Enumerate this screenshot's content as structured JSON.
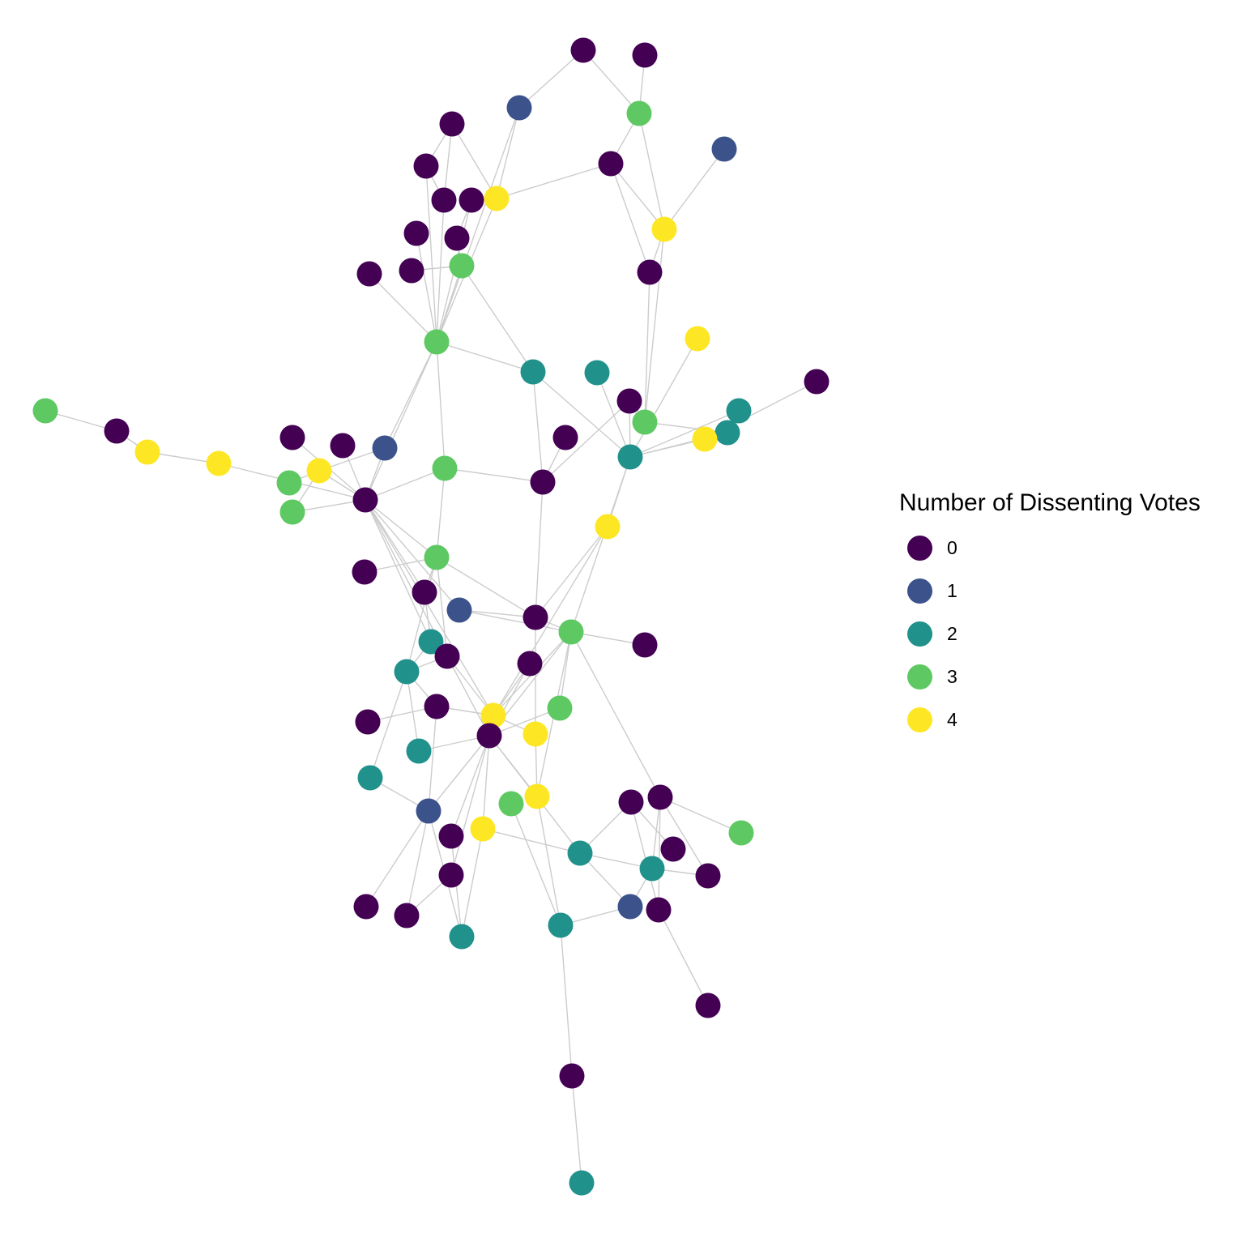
{
  "legend": {
    "title": "Number of Dissenting Votes",
    "items": [
      {
        "label": "0",
        "color": "#440154"
      },
      {
        "label": "1",
        "color": "#3b528b"
      },
      {
        "label": "2",
        "color": "#21918c"
      },
      {
        "label": "3",
        "color": "#5ec962"
      },
      {
        "label": "4",
        "color": "#fde725"
      }
    ]
  },
  "network": {
    "node_count": 92,
    "edge_color": "#cccccc",
    "nodes": [
      {
        "id": 0,
        "votes": 0
      },
      {
        "id": 1,
        "votes": 0
      },
      {
        "id": 2,
        "votes": 1
      },
      {
        "id": 3,
        "votes": 3
      },
      {
        "id": 4,
        "votes": 0
      },
      {
        "id": 5,
        "votes": 1
      },
      {
        "id": 6,
        "votes": 0
      },
      {
        "id": 7,
        "votes": 0
      },
      {
        "id": 8,
        "votes": 0
      },
      {
        "id": 9,
        "votes": 0
      },
      {
        "id": 10,
        "votes": 4
      },
      {
        "id": 11,
        "votes": 4
      },
      {
        "id": 12,
        "votes": 0
      },
      {
        "id": 13,
        "votes": 0
      },
      {
        "id": 14,
        "votes": 0
      },
      {
        "id": 15,
        "votes": 0
      },
      {
        "id": 16,
        "votes": 3
      },
      {
        "id": 17,
        "votes": 0
      },
      {
        "id": 18,
        "votes": 4
      },
      {
        "id": 19,
        "votes": 3
      },
      {
        "id": 20,
        "votes": 2
      },
      {
        "id": 21,
        "votes": 2
      },
      {
        "id": 22,
        "votes": 0
      },
      {
        "id": 23,
        "votes": 0
      },
      {
        "id": 24,
        "votes": 2
      },
      {
        "id": 25,
        "votes": 3
      },
      {
        "id": 26,
        "votes": 2
      },
      {
        "id": 27,
        "votes": 4
      },
      {
        "id": 28,
        "votes": 3
      },
      {
        "id": 29,
        "votes": 0
      },
      {
        "id": 30,
        "votes": 4
      },
      {
        "id": 31,
        "votes": 4
      },
      {
        "id": 32,
        "votes": 0
      },
      {
        "id": 33,
        "votes": 0
      },
      {
        "id": 34,
        "votes": 1
      },
      {
        "id": 35,
        "votes": 3
      },
      {
        "id": 36,
        "votes": 0
      },
      {
        "id": 37,
        "votes": 2
      },
      {
        "id": 38,
        "votes": 3
      },
      {
        "id": 39,
        "votes": 3
      },
      {
        "id": 40,
        "votes": 0
      },
      {
        "id": 41,
        "votes": 4
      },
      {
        "id": 42,
        "votes": 3
      },
      {
        "id": 43,
        "votes": 0
      },
      {
        "id": 44,
        "votes": 0
      },
      {
        "id": 45,
        "votes": 1
      },
      {
        "id": 46,
        "votes": 0
      },
      {
        "id": 47,
        "votes": 3
      },
      {
        "id": 48,
        "votes": 0
      },
      {
        "id": 49,
        "votes": 2
      },
      {
        "id": 50,
        "votes": 0
      },
      {
        "id": 51,
        "votes": 2
      },
      {
        "id": 52,
        "votes": 0
      },
      {
        "id": 53,
        "votes": 0
      },
      {
        "id": 54,
        "votes": 3
      },
      {
        "id": 55,
        "votes": 4
      },
      {
        "id": 56,
        "votes": 0
      },
      {
        "id": 57,
        "votes": 4
      },
      {
        "id": 58,
        "votes": 2
      },
      {
        "id": 59,
        "votes": 2
      },
      {
        "id": 60,
        "votes": 4
      },
      {
        "id": 61,
        "votes": 3
      },
      {
        "id": 62,
        "votes": 1
      },
      {
        "id": 63,
        "votes": 4
      },
      {
        "id": 64,
        "votes": 0
      },
      {
        "id": 65,
        "votes": 2
      },
      {
        "id": 66,
        "votes": 0
      },
      {
        "id": 67,
        "votes": 0
      },
      {
        "id": 68,
        "votes": 3
      },
      {
        "id": 69,
        "votes": 0
      },
      {
        "id": 70,
        "votes": 2
      },
      {
        "id": 71,
        "votes": 0
      },
      {
        "id": 72,
        "votes": 0
      },
      {
        "id": 73,
        "votes": 0
      },
      {
        "id": 74,
        "votes": 1
      },
      {
        "id": 75,
        "votes": 0
      },
      {
        "id": 76,
        "votes": 0
      },
      {
        "id": 77,
        "votes": 2
      },
      {
        "id": 78,
        "votes": 2
      },
      {
        "id": 79,
        "votes": 0
      },
      {
        "id": 80,
        "votes": 0
      },
      {
        "id": 81,
        "votes": 2
      },
      {
        "id": 82,
        "votes": 0
      },
      {
        "id": 83,
        "votes": 0
      },
      {
        "id": 84,
        "votes": 2
      },
      {
        "id": 85,
        "votes": 0
      },
      {
        "id": 86,
        "votes": 0
      },
      {
        "id": 87,
        "votes": 0
      },
      {
        "id": 88,
        "votes": 3
      },
      {
        "id": 89,
        "votes": 0
      },
      {
        "id": 90,
        "votes": 0
      },
      {
        "id": 91,
        "votes": 0
      }
    ],
    "edges": [
      [
        0,
        2
      ],
      [
        2,
        10
      ],
      [
        0,
        3
      ],
      [
        1,
        3
      ],
      [
        3,
        11
      ],
      [
        4,
        11
      ],
      [
        5,
        11
      ],
      [
        4,
        10
      ],
      [
        6,
        10
      ],
      [
        7,
        10
      ],
      [
        8,
        10
      ],
      [
        9,
        10
      ],
      [
        6,
        16
      ],
      [
        7,
        16
      ],
      [
        8,
        16
      ],
      [
        9,
        16
      ],
      [
        12,
        16
      ],
      [
        13,
        16
      ],
      [
        14,
        16
      ],
      [
        15,
        16
      ],
      [
        10,
        16
      ],
      [
        2,
        16
      ],
      [
        3,
        11
      ],
      [
        12,
        16
      ],
      [
        13,
        19
      ],
      [
        14,
        19
      ],
      [
        6,
        19
      ],
      [
        19,
        16
      ],
      [
        16,
        20
      ],
      [
        20,
        22
      ],
      [
        20,
        24
      ],
      [
        22,
        17
      ],
      [
        17,
        24
      ],
      [
        22,
        25
      ],
      [
        24,
        25
      ],
      [
        24,
        18
      ],
      [
        24,
        21
      ],
      [
        24,
        26
      ],
      [
        23,
        26
      ],
      [
        24,
        27
      ],
      [
        16,
        34
      ],
      [
        16,
        28
      ],
      [
        28,
        29
      ],
      [
        29,
        22
      ],
      [
        29,
        30
      ],
      [
        34,
        33
      ],
      [
        33,
        32
      ],
      [
        32,
        35
      ],
      [
        35,
        36
      ],
      [
        36,
        37
      ],
      [
        37,
        38
      ],
      [
        38,
        40
      ],
      [
        40,
        33
      ],
      [
        40,
        35
      ],
      [
        40,
        38
      ],
      [
        40,
        34
      ],
      [
        40,
        42
      ],
      [
        40,
        45
      ],
      [
        40,
        44
      ],
      [
        40,
        47
      ],
      [
        40,
        46
      ],
      [
        16,
        42
      ],
      [
        28,
        42
      ],
      [
        42,
        43
      ],
      [
        42,
        47
      ],
      [
        47,
        30
      ],
      [
        30,
        24
      ],
      [
        29,
        48
      ],
      [
        48,
        47
      ],
      [
        48,
        30
      ],
      [
        47,
        24
      ],
      [
        47,
        50
      ],
      [
        49,
        45
      ],
      [
        49,
        44
      ],
      [
        45,
        54
      ],
      [
        54,
        55
      ],
      [
        55,
        57
      ],
      [
        55,
        58
      ],
      [
        52,
        55
      ],
      [
        52,
        56
      ],
      [
        51,
        56
      ],
      [
        53,
        57
      ],
      [
        56,
        59
      ],
      [
        56,
        60
      ],
      [
        56,
        63
      ],
      [
        56,
        61
      ],
      [
        56,
        62
      ],
      [
        56,
        64
      ],
      [
        56,
        65
      ],
      [
        62,
        49
      ],
      [
        62,
        66
      ],
      [
        62,
        67
      ],
      [
        61,
        64
      ],
      [
        61,
        68
      ],
      [
        61,
        70
      ],
      [
        63,
        70
      ],
      [
        70,
        72
      ],
      [
        70,
        74
      ],
      [
        72,
        74
      ],
      [
        72,
        71
      ],
      [
        71,
        76
      ],
      [
        71,
        75
      ],
      [
        71,
        73
      ],
      [
        71,
        77
      ],
      [
        72,
        77
      ],
      [
        73,
        77
      ],
      [
        77,
        74
      ],
      [
        74,
        81
      ],
      [
        81,
        78
      ],
      [
        78,
        79
      ],
      [
        75,
        80
      ],
      [
        63,
        81
      ],
      [
        68,
        63
      ],
      [
        50,
        56
      ],
      [
        50,
        63
      ],
      [
        50,
        61
      ],
      [
        54,
        56
      ],
      [
        53,
        55
      ],
      [
        46,
        54
      ],
      [
        44,
        54
      ],
      [
        45,
        56
      ],
      [
        48,
        71
      ],
      [
        48,
        69
      ],
      [
        65,
        58
      ],
      [
        62,
        82
      ],
      [
        62,
        83
      ],
      [
        62,
        84
      ],
      [
        64,
        85
      ],
      [
        64,
        86
      ],
      [
        64,
        84
      ],
      [
        62,
        63
      ],
      [
        60,
        61
      ],
      [
        58,
        59
      ]
    ]
  }
}
